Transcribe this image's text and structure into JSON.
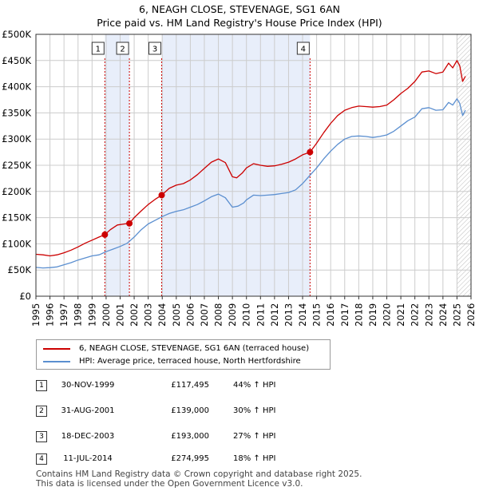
{
  "title": "6, NEAGH CLOSE, STEVENAGE, SG1 6AN",
  "subtitle": "Price paid vs. HM Land Registry's House Price Index (HPI)",
  "colors": {
    "property": "#cc0000",
    "hpi": "#5b8fd0",
    "band": "#e8eefa",
    "grid": "#cccccc",
    "vline": "#cc0000"
  },
  "chart_data": {
    "type": "line",
    "title": "6, NEAGH CLOSE, STEVENAGE, SG1 6AN",
    "subtitle": "Price paid vs. HM Land Registry's House Price Index (HPI)",
    "xlim": [
      1995,
      2026
    ],
    "ylim": [
      0,
      500000
    ],
    "yticks": [
      0,
      50000,
      100000,
      150000,
      200000,
      250000,
      300000,
      350000,
      400000,
      450000,
      500000
    ],
    "ytick_labels": [
      "£0",
      "£50K",
      "£100K",
      "£150K",
      "£200K",
      "£250K",
      "£300K",
      "£350K",
      "£400K",
      "£450K",
      "£500K"
    ],
    "xticks": [
      1995,
      1996,
      1997,
      1998,
      1999,
      2000,
      2001,
      2002,
      2003,
      2004,
      2005,
      2006,
      2007,
      2008,
      2009,
      2010,
      2011,
      2012,
      2013,
      2014,
      2015,
      2016,
      2017,
      2018,
      2019,
      2020,
      2021,
      2022,
      2023,
      2024,
      2025,
      2026
    ],
    "grid": true,
    "shaded_spans": [
      [
        1999.91,
        2001.66
      ],
      [
        2003.96,
        2014.53
      ]
    ],
    "future_hatch_from": 2025.0,
    "series": [
      {
        "name": "6, NEAGH CLOSE, STEVENAGE, SG1 6AN (terraced house)",
        "color": "#cc0000",
        "points": [
          [
            1995.0,
            80000
          ],
          [
            1995.5,
            79000
          ],
          [
            1996.0,
            77000
          ],
          [
            1996.5,
            79000
          ],
          [
            1997.0,
            83000
          ],
          [
            1997.5,
            88000
          ],
          [
            1998.0,
            94000
          ],
          [
            1998.5,
            101000
          ],
          [
            1999.0,
            107000
          ],
          [
            1999.5,
            113000
          ],
          [
            1999.91,
            117495
          ],
          [
            2000.3,
            127000
          ],
          [
            2000.8,
            136000
          ],
          [
            2001.3,
            138000
          ],
          [
            2001.66,
            139000
          ],
          [
            2002.0,
            150000
          ],
          [
            2002.5,
            163000
          ],
          [
            2003.0,
            175000
          ],
          [
            2003.5,
            185000
          ],
          [
            2003.96,
            193000
          ],
          [
            2004.5,
            206000
          ],
          [
            2005.0,
            212000
          ],
          [
            2005.5,
            215000
          ],
          [
            2006.0,
            222000
          ],
          [
            2006.5,
            232000
          ],
          [
            2007.0,
            244000
          ],
          [
            2007.5,
            256000
          ],
          [
            2008.0,
            262000
          ],
          [
            2008.5,
            255000
          ],
          [
            2009.0,
            228000
          ],
          [
            2009.3,
            226000
          ],
          [
            2009.7,
            235000
          ],
          [
            2010.0,
            245000
          ],
          [
            2010.5,
            253000
          ],
          [
            2011.0,
            250000
          ],
          [
            2011.5,
            248000
          ],
          [
            2012.0,
            249000
          ],
          [
            2012.5,
            252000
          ],
          [
            2013.0,
            256000
          ],
          [
            2013.5,
            262000
          ],
          [
            2014.0,
            270000
          ],
          [
            2014.53,
            274995
          ],
          [
            2015.0,
            292000
          ],
          [
            2015.5,
            312000
          ],
          [
            2016.0,
            330000
          ],
          [
            2016.5,
            345000
          ],
          [
            2017.0,
            355000
          ],
          [
            2017.5,
            360000
          ],
          [
            2018.0,
            363000
          ],
          [
            2018.5,
            362000
          ],
          [
            2019.0,
            361000
          ],
          [
            2019.5,
            362000
          ],
          [
            2020.0,
            365000
          ],
          [
            2020.5,
            375000
          ],
          [
            2021.0,
            387000
          ],
          [
            2021.5,
            397000
          ],
          [
            2022.0,
            410000
          ],
          [
            2022.5,
            428000
          ],
          [
            2023.0,
            430000
          ],
          [
            2023.5,
            425000
          ],
          [
            2024.0,
            428000
          ],
          [
            2024.4,
            445000
          ],
          [
            2024.7,
            436000
          ],
          [
            2025.0,
            450000
          ],
          [
            2025.2,
            440000
          ],
          [
            2025.4,
            410000
          ],
          [
            2025.6,
            420000
          ]
        ]
      },
      {
        "name": "HPI: Average price, terraced house, North Hertfordshire",
        "color": "#5b8fd0",
        "points": [
          [
            1995.0,
            55000
          ],
          [
            1995.5,
            54000
          ],
          [
            1996.0,
            54500
          ],
          [
            1996.5,
            56000
          ],
          [
            1997.0,
            60000
          ],
          [
            1997.5,
            64000
          ],
          [
            1998.0,
            69000
          ],
          [
            1998.5,
            73000
          ],
          [
            1999.0,
            77000
          ],
          [
            1999.5,
            79000
          ],
          [
            2000.0,
            85000
          ],
          [
            2000.5,
            90000
          ],
          [
            2001.0,
            95000
          ],
          [
            2001.5,
            101000
          ],
          [
            2002.0,
            113000
          ],
          [
            2002.5,
            127000
          ],
          [
            2003.0,
            138000
          ],
          [
            2003.5,
            145000
          ],
          [
            2004.0,
            152000
          ],
          [
            2004.5,
            158000
          ],
          [
            2005.0,
            162000
          ],
          [
            2005.5,
            165000
          ],
          [
            2006.0,
            170000
          ],
          [
            2006.5,
            175000
          ],
          [
            2007.0,
            182000
          ],
          [
            2007.5,
            190000
          ],
          [
            2008.0,
            195000
          ],
          [
            2008.5,
            188000
          ],
          [
            2009.0,
            170000
          ],
          [
            2009.4,
            172000
          ],
          [
            2009.8,
            178000
          ],
          [
            2010.0,
            184000
          ],
          [
            2010.5,
            193000
          ],
          [
            2011.0,
            192000
          ],
          [
            2011.5,
            193000
          ],
          [
            2012.0,
            194000
          ],
          [
            2012.5,
            196000
          ],
          [
            2013.0,
            198000
          ],
          [
            2013.5,
            203000
          ],
          [
            2014.0,
            215000
          ],
          [
            2014.5,
            230000
          ],
          [
            2015.0,
            245000
          ],
          [
            2015.5,
            262000
          ],
          [
            2016.0,
            277000
          ],
          [
            2016.5,
            290000
          ],
          [
            2017.0,
            300000
          ],
          [
            2017.5,
            305000
          ],
          [
            2018.0,
            306000
          ],
          [
            2018.5,
            305000
          ],
          [
            2019.0,
            303000
          ],
          [
            2019.5,
            305000
          ],
          [
            2020.0,
            308000
          ],
          [
            2020.5,
            315000
          ],
          [
            2021.0,
            325000
          ],
          [
            2021.5,
            335000
          ],
          [
            2022.0,
            342000
          ],
          [
            2022.5,
            358000
          ],
          [
            2023.0,
            360000
          ],
          [
            2023.5,
            355000
          ],
          [
            2024.0,
            356000
          ],
          [
            2024.4,
            370000
          ],
          [
            2024.7,
            365000
          ],
          [
            2025.0,
            377000
          ],
          [
            2025.2,
            368000
          ],
          [
            2025.4,
            345000
          ],
          [
            2025.6,
            355000
          ]
        ]
      }
    ],
    "sales": [
      {
        "n": "1",
        "x": 1999.91,
        "y": 117495
      },
      {
        "n": "2",
        "x": 2001.66,
        "y": 139000
      },
      {
        "n": "3",
        "x": 2003.96,
        "y": 193000
      },
      {
        "n": "4",
        "x": 2014.53,
        "y": 274995
      }
    ]
  },
  "legend": [
    {
      "label": "6, NEAGH CLOSE, STEVENAGE, SG1 6AN (terraced house)",
      "color": "#cc0000"
    },
    {
      "label": "HPI: Average price, terraced house, North Hertfordshire",
      "color": "#5b8fd0"
    }
  ],
  "sales_table": [
    {
      "n": "1",
      "date": "30-NOV-1999",
      "price": "£117,495",
      "hpi": "44% ↑ HPI"
    },
    {
      "n": "2",
      "date": "31-AUG-2001",
      "price": "£139,000",
      "hpi": "30% ↑ HPI"
    },
    {
      "n": "3",
      "date": "18-DEC-2003",
      "price": "£193,000",
      "hpi": "27% ↑ HPI"
    },
    {
      "n": "4",
      "date": "11-JUL-2014",
      "price": "£274,995",
      "hpi": "18% ↑ HPI"
    }
  ],
  "footer": {
    "line1": "Contains HM Land Registry data © Crown copyright and database right 2025.",
    "line2": "This data is licensed under the Open Government Licence v3.0."
  }
}
